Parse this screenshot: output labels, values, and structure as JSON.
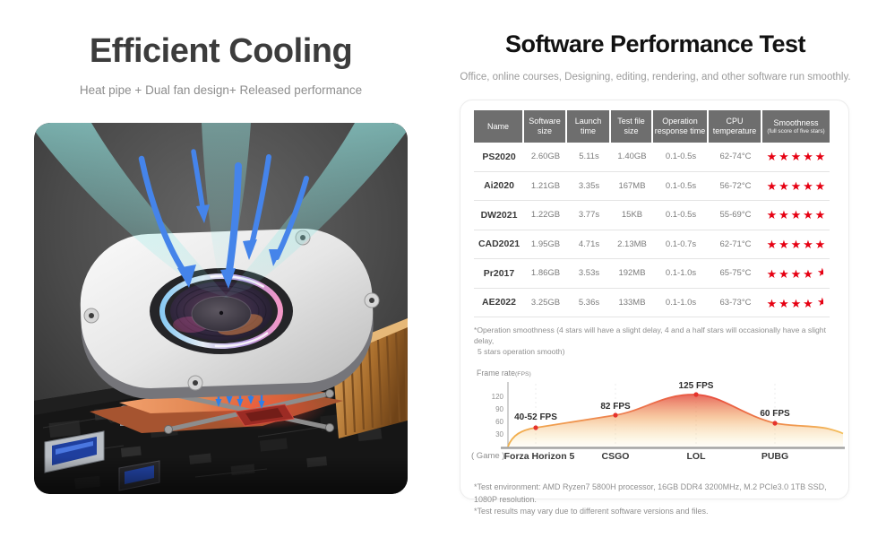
{
  "left_panel": {
    "title": "Efficient Cooling",
    "subtitle": "Heat pipe + Dual fan design+ Released performance",
    "illustration": {
      "airflow_color": "#8ceae6",
      "arrow_color": "#3f7ce6",
      "heat_pipe_color": "#d8804c",
      "fan_body_color": "#e8e8e8"
    }
  },
  "right_panel": {
    "title": "Software Performance Test",
    "subtitle": "Office, online courses, Designing, editing, rendering, and other software run smoothly.",
    "table": {
      "header_bg": "#6e6e6e",
      "star_color": "#e60012",
      "columns": [
        {
          "label": "Name"
        },
        {
          "label": "Software size"
        },
        {
          "label": "Launch time"
        },
        {
          "label": "Test file size"
        },
        {
          "label": "Operation response time"
        },
        {
          "label": "CPU temperature"
        },
        {
          "label": "Smoothness",
          "sub": "(full score of five stars)"
        }
      ],
      "rows": [
        {
          "name": "PS2020",
          "software_size": "2.60GB",
          "launch_time": "5.11s",
          "test_file_size": "1.40GB",
          "operation_response_time": "0.1-0.5s",
          "cpu_temperature": "62-74°C",
          "smoothness_stars": 5
        },
        {
          "name": "Ai2020",
          "software_size": "1.21GB",
          "launch_time": "3.35s",
          "test_file_size": "167MB",
          "operation_response_time": "0.1-0.5s",
          "cpu_temperature": "56-72°C",
          "smoothness_stars": 5
        },
        {
          "name": "DW2021",
          "software_size": "1.22GB",
          "launch_time": "3.77s",
          "test_file_size": "15KB",
          "operation_response_time": "0.1-0.5s",
          "cpu_temperature": "55-69°C",
          "smoothness_stars": 5
        },
        {
          "name": "CAD2021",
          "software_size": "1.95GB",
          "launch_time": "4.71s",
          "test_file_size": "2.13MB",
          "operation_response_time": "0.1-0.7s",
          "cpu_temperature": "62-71°C",
          "smoothness_stars": 5
        },
        {
          "name": "Pr2017",
          "software_size": "1.86GB",
          "launch_time": "3.53s",
          "test_file_size": "192MB",
          "operation_response_time": "0.1-1.0s",
          "cpu_temperature": "65-75°C",
          "smoothness_stars": 4.5
        },
        {
          "name": "AE2022",
          "software_size": "3.25GB",
          "launch_time": "5.36s",
          "test_file_size": "133MB",
          "operation_response_time": "0.1-1.0s",
          "cpu_temperature": "63-73°C",
          "smoothness_stars": 4.5
        }
      ]
    },
    "table_footnote_line1": "*Operation smoothness (4 stars will have a slight delay, 4 and a half stars will occasionally have a slight delay,",
    "table_footnote_line2": "5 stars operation smooth)",
    "chart": {
      "title_main": "Frame rate",
      "title_unit": "(FPS)",
      "yticks": [
        "120",
        "90",
        "60",
        "30"
      ],
      "game_prefix": "( Game )"
    },
    "footnotes": [
      "*Test environment: AMD Ryzen7 5800H processor, 16GB DDR4 3200MHz, M.2 PCIe3.0 1TB SSD, 1080P resolution.",
      "*Test results may vary due to different software versions and files."
    ]
  },
  "chart_data": {
    "type": "area",
    "title": "Frame rate(FPS)",
    "xlabel": "( Game )",
    "ylabel": "FPS",
    "categories": [
      "Forza Horizon 5",
      "CSGO",
      "LOL",
      "PUBG"
    ],
    "values": [
      48,
      82,
      125,
      60
    ],
    "point_labels": [
      "40-52 FPS",
      "82 FPS",
      "125 FPS",
      "60 FPS"
    ],
    "yticks": [
      30,
      60,
      90,
      120
    ],
    "ylim": [
      0,
      140
    ],
    "grid": "faint dashed vertical lines at each category",
    "legend": "none",
    "colors": {
      "area_top": "#e4574b",
      "area_bottom": "#fdf3da",
      "line": "#ed7d4e",
      "point": "#e5332c"
    }
  }
}
